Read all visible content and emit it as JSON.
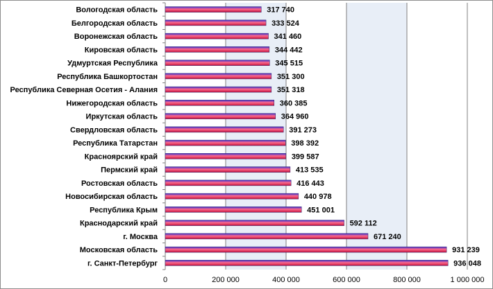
{
  "chart_data": {
    "type": "bar",
    "orientation": "horizontal",
    "categories": [
      "Вологодская область",
      "Белгородская область",
      "Воронежская область",
      "Кировская область",
      "Удмуртская Республика",
      "Республика Башкортостан",
      "Республика Северная Осетия - Алания",
      "Нижегородская область",
      "Иркутская область",
      "Свердловская область",
      "Республика Татарстан",
      "Красноярский край",
      "Пермский край",
      "Ростовская область",
      "Новосибирская область",
      "Республика Крым",
      "Краснодарский край",
      "г. Москва",
      "Московская область",
      "г. Санкт-Петербург"
    ],
    "values": [
      317740,
      333524,
      341460,
      344442,
      345515,
      351300,
      351318,
      360385,
      364960,
      391273,
      398392,
      399587,
      413535,
      416443,
      440978,
      451001,
      592112,
      671240,
      931239,
      936048
    ],
    "value_labels": [
      "317 740",
      "333 524",
      "341 460",
      "344 442",
      "345 515",
      "351 300",
      "351 318",
      "360 385",
      "364 960",
      "391 273",
      "398 392",
      "399 587",
      "413 535",
      "416 443",
      "440 978",
      "451 001",
      "592 112",
      "671 240",
      "931 239",
      "936 048"
    ],
    "xlim": [
      0,
      1000000
    ],
    "x_ticks": [
      0,
      200000,
      400000,
      600000,
      800000,
      1000000
    ],
    "x_tick_labels": [
      "0",
      "200 000",
      "400 000",
      "600 000",
      "800 000",
      "1 000 000"
    ],
    "grid": true,
    "legend": "none",
    "colors": {
      "bar_top": "#3a2fd0",
      "bar_mid": "#ff6a8a",
      "bar_bottom": "#c0103e",
      "plot_background_band": "#e8eef7",
      "gridline": "#7f7f7f"
    }
  }
}
